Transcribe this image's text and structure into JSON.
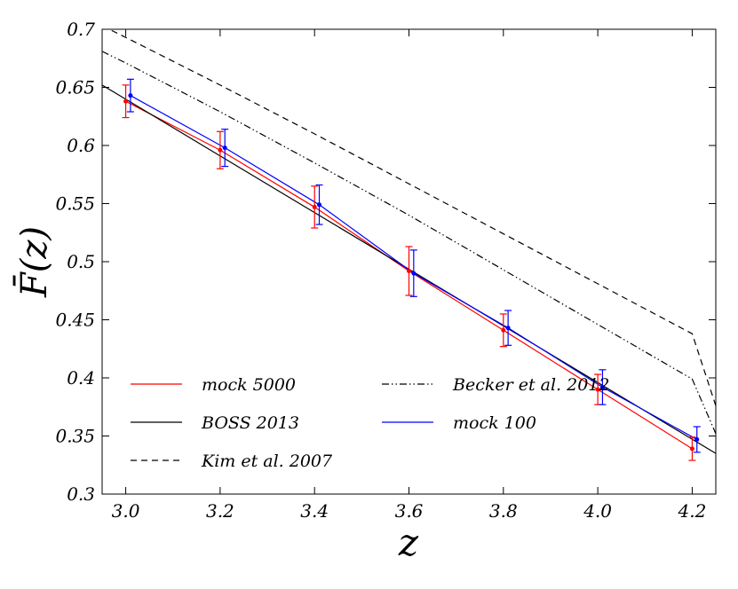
{
  "chart_data": {
    "type": "line",
    "title": "",
    "xlabel": "z",
    "ylabel": "F̄(z)",
    "xlim": [
      2.95,
      4.25
    ],
    "ylim": [
      0.3,
      0.7
    ],
    "xticks": [
      "3.0",
      "3.2",
      "3.4",
      "3.6",
      "3.8",
      "4.0",
      "4.2"
    ],
    "yticks": [
      "0.3",
      "0.35",
      "0.4",
      "0.45",
      "0.5",
      "0.55",
      "0.6",
      "0.65",
      "0.7"
    ],
    "grid": false,
    "legend_position": "bottom-left",
    "series": [
      {
        "name": "mock 5000",
        "color": "#ff0000",
        "style": "solid",
        "x": [
          3.0,
          3.2,
          3.4,
          3.6,
          3.8,
          4.0,
          4.2
        ],
        "values": [
          0.638,
          0.596,
          0.547,
          0.492,
          0.441,
          0.39,
          0.339
        ],
        "errors": [
          0.014,
          0.016,
          0.018,
          0.021,
          0.014,
          0.013,
          0.01
        ]
      },
      {
        "name": "BOSS 2013",
        "color": "#000000",
        "style": "solid",
        "x": [
          2.95,
          4.25
        ],
        "values": [
          0.652,
          0.335
        ]
      },
      {
        "name": "Kim et al. 2007",
        "color": "#000000",
        "style": "dashed",
        "x": [
          2.95,
          3.0,
          3.2,
          3.4,
          3.6,
          3.8,
          4.0,
          4.2,
          4.25
        ],
        "values": [
          0.703,
          0.693,
          0.652,
          0.61,
          0.567,
          0.524,
          0.481,
          0.438,
          0.376
        ]
      },
      {
        "name": "Becker et al. 2012",
        "color": "#000000",
        "style": "dashdotdot",
        "x": [
          2.95,
          3.0,
          3.2,
          3.4,
          3.6,
          3.8,
          4.0,
          4.2,
          4.25
        ],
        "values": [
          0.681,
          0.671,
          0.629,
          0.585,
          0.54,
          0.493,
          0.446,
          0.399,
          0.352
        ]
      },
      {
        "name": "mock 100",
        "color": "#0000ff",
        "style": "solid",
        "x": [
          3.01,
          3.21,
          3.41,
          3.61,
          3.81,
          4.01,
          4.21
        ],
        "values": [
          0.643,
          0.598,
          0.549,
          0.49,
          0.443,
          0.392,
          0.347
        ],
        "errors": [
          0.014,
          0.016,
          0.017,
          0.02,
          0.015,
          0.015,
          0.011
        ]
      }
    ]
  }
}
